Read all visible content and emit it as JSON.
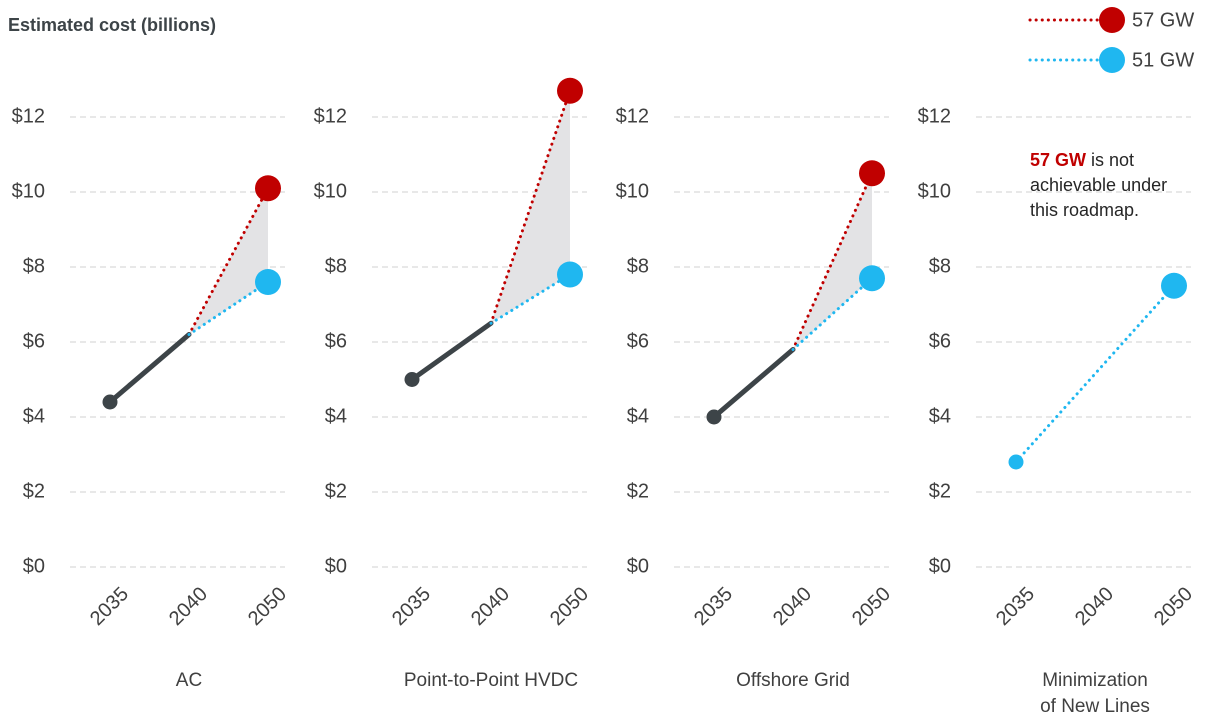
{
  "title": "Estimated cost (billions)",
  "legend": "top-right",
  "chart_data": [
    {
      "type": "line",
      "xlabel": "AC",
      "categories": [
        "2035",
        "2040",
        "2050"
      ],
      "ylim": [
        0,
        13
      ],
      "yticks": [
        {
          "value": 0,
          "label": "$0"
        },
        {
          "value": 2,
          "label": "$2"
        },
        {
          "value": 4,
          "label": "$4"
        },
        {
          "value": 6,
          "label": "$6"
        },
        {
          "value": 8,
          "label": "$8"
        },
        {
          "value": 10,
          "label": "$10"
        },
        {
          "value": 12,
          "label": "$12"
        }
      ],
      "grid": true,
      "shade_between": [
        1,
        2
      ],
      "series": [
        {
          "color": "#3d4448",
          "style": "solid",
          "values": [
            4.4,
            6.2,
            null
          ]
        },
        {
          "name": "57 GW",
          "color": "#c00000",
          "style": "dotted",
          "values": [
            null,
            6.2,
            10.1
          ]
        },
        {
          "name": "51 GW",
          "color": "#1fb7f0",
          "style": "dotted",
          "values": [
            null,
            6.2,
            7.6
          ]
        }
      ]
    },
    {
      "type": "line",
      "xlabel": "Point-to-Point HVDC",
      "categories": [
        "2035",
        "2040",
        "2050"
      ],
      "ylim": [
        0,
        13
      ],
      "yticks": [
        {
          "value": 0,
          "label": "$0"
        },
        {
          "value": 2,
          "label": "$2"
        },
        {
          "value": 4,
          "label": "$4"
        },
        {
          "value": 6,
          "label": "$6"
        },
        {
          "value": 8,
          "label": "$8"
        },
        {
          "value": 10,
          "label": "$10"
        },
        {
          "value": 12,
          "label": "$12"
        }
      ],
      "grid": true,
      "shade_between": [
        1,
        2
      ],
      "series": [
        {
          "color": "#3d4448",
          "style": "solid",
          "values": [
            5.0,
            6.5,
            null
          ]
        },
        {
          "name": "57 GW",
          "color": "#c00000",
          "style": "dotted",
          "values": [
            null,
            6.5,
            12.7
          ]
        },
        {
          "name": "51 GW",
          "color": "#1fb7f0",
          "style": "dotted",
          "values": [
            null,
            6.5,
            7.8
          ]
        }
      ]
    },
    {
      "type": "line",
      "xlabel": "Offshore Grid",
      "categories": [
        "2035",
        "2040",
        "2050"
      ],
      "ylim": [
        0,
        13
      ],
      "yticks": [
        {
          "value": 0,
          "label": "$0"
        },
        {
          "value": 2,
          "label": "$2"
        },
        {
          "value": 4,
          "label": "$4"
        },
        {
          "value": 6,
          "label": "$6"
        },
        {
          "value": 8,
          "label": "$8"
        },
        {
          "value": 10,
          "label": "$10"
        },
        {
          "value": 12,
          "label": "$12"
        }
      ],
      "grid": true,
      "shade_between": [
        1,
        2
      ],
      "series": [
        {
          "color": "#3d4448",
          "style": "solid",
          "values": [
            4.0,
            5.8,
            null
          ]
        },
        {
          "name": "57 GW",
          "color": "#c00000",
          "style": "dotted",
          "values": [
            null,
            5.8,
            10.5
          ]
        },
        {
          "name": "51 GW",
          "color": "#1fb7f0",
          "style": "dotted",
          "values": [
            null,
            5.8,
            7.7
          ]
        }
      ]
    },
    {
      "type": "line",
      "xlabel": "Minimization of New Lines",
      "categories": [
        "2035",
        "2040",
        "2050"
      ],
      "ylim": [
        0,
        13
      ],
      "yticks": [
        {
          "value": 0,
          "label": "$0"
        },
        {
          "value": 2,
          "label": "$2"
        },
        {
          "value": 4,
          "label": "$4"
        },
        {
          "value": 6,
          "label": "$6"
        },
        {
          "value": 8,
          "label": "$8"
        },
        {
          "value": 10,
          "label": "$10"
        },
        {
          "value": 12,
          "label": "$12"
        }
      ],
      "grid": true,
      "connect_gaps": true,
      "annotation": {
        "highlight": "57 GW",
        "highlight_color": "#c00000",
        "lines": [
          "is not",
          "achievable under",
          "this roadmap."
        ]
      },
      "series": [
        {
          "name": "51 GW",
          "color": "#1fb7f0",
          "style": "dotted",
          "values": [
            2.8,
            null,
            7.5
          ]
        }
      ]
    }
  ]
}
